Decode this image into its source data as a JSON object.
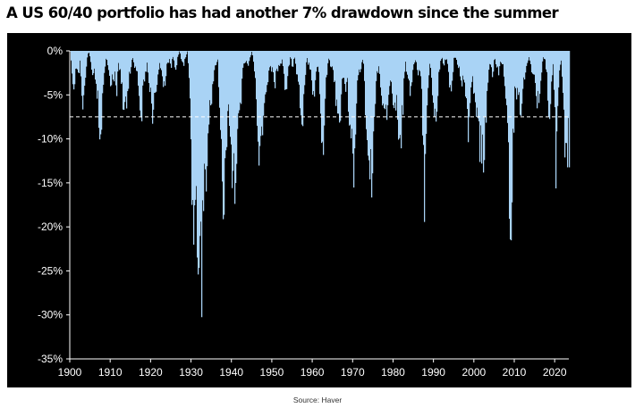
{
  "title": "A US 60/40 portfolio has had another 7% drawdown since the summer",
  "source": "Source: Haver",
  "colors": {
    "background": "#000000",
    "bars": "#a9d3f5",
    "threshold_line": "#ffffff",
    "axis_text": "#ffffff"
  },
  "chart_data": {
    "type": "area",
    "title": "A US 60/40 portfolio has had another 7% drawdown since the summer",
    "xlabel": "",
    "ylabel": "",
    "xlim": [
      1900,
      2023.5
    ],
    "ylim": [
      -35,
      0
    ],
    "x_ticks": [
      1900,
      1910,
      1920,
      1930,
      1940,
      1950,
      1960,
      1970,
      1980,
      1990,
      2000,
      2010,
      2020
    ],
    "x_tick_labels": [
      "1900",
      "1910",
      "1920",
      "1930",
      "1940",
      "1950",
      "1960",
      "1970",
      "1980",
      "1990",
      "2000",
      "2010",
      "2020"
    ],
    "y_ticks": [
      0,
      -5,
      -10,
      -15,
      -20,
      -25,
      -30,
      -35
    ],
    "y_tick_labels": [
      "0%",
      "-5%",
      "-10%",
      "-15%",
      "-20%",
      "-25%",
      "-30%",
      "-35%"
    ],
    "threshold": -7.5,
    "grid": false,
    "series": [
      {
        "name": "",
        "unit": "%",
        "points": [
          [
            1900.0,
            0
          ],
          [
            1900.5,
            -3
          ],
          [
            1901,
            -5
          ],
          [
            1901.5,
            -2
          ],
          [
            1902,
            -4
          ],
          [
            1902.5,
            -1
          ],
          [
            1903,
            -7
          ],
          [
            1903.5,
            -5
          ],
          [
            1904,
            -2
          ],
          [
            1904.5,
            0
          ],
          [
            1905,
            -1
          ],
          [
            1905.5,
            -3
          ],
          [
            1906,
            -2
          ],
          [
            1906.5,
            -5
          ],
          [
            1907,
            -8
          ],
          [
            1907.5,
            -11.8
          ],
          [
            1908,
            -6
          ],
          [
            1908.5,
            -2
          ],
          [
            1909,
            -1
          ],
          [
            1909.5,
            -2
          ],
          [
            1910,
            -5
          ],
          [
            1910.5,
            -4
          ],
          [
            1911,
            -3
          ],
          [
            1911.5,
            -5
          ],
          [
            1912,
            -2
          ],
          [
            1912.5,
            -3
          ],
          [
            1913,
            -7
          ],
          [
            1913.5,
            -8.5
          ],
          [
            1914,
            -6
          ],
          [
            1914.5,
            -4
          ],
          [
            1915,
            -2
          ],
          [
            1915.5,
            -1
          ],
          [
            1916,
            -3
          ],
          [
            1916.5,
            -2
          ],
          [
            1917,
            -8
          ],
          [
            1917.5,
            -9.3
          ],
          [
            1918,
            -6
          ],
          [
            1918.5,
            -3
          ],
          [
            1919,
            -2
          ],
          [
            1919.5,
            -4
          ],
          [
            1920,
            -7
          ],
          [
            1920.5,
            -8.6
          ],
          [
            1921,
            -6
          ],
          [
            1921.5,
            -4
          ],
          [
            1922,
            -2
          ],
          [
            1922.5,
            -3
          ],
          [
            1923,
            -5
          ],
          [
            1923.5,
            -4
          ],
          [
            1924,
            -2
          ],
          [
            1924.5,
            -1
          ],
          [
            1925,
            -2
          ],
          [
            1925.5,
            -1
          ],
          [
            1926,
            -3
          ],
          [
            1926.5,
            -1
          ],
          [
            1927,
            0
          ],
          [
            1927.5,
            -1
          ],
          [
            1928,
            -2
          ],
          [
            1928.5,
            -1
          ],
          [
            1929,
            0
          ],
          [
            1929.5,
            -4
          ],
          [
            1929.8,
            -12
          ],
          [
            1930,
            -15
          ],
          [
            1930.3,
            -26.5
          ],
          [
            1930.6,
            -20
          ],
          [
            1930.9,
            -24
          ],
          [
            1931.2,
            -22
          ],
          [
            1931.5,
            -25
          ],
          [
            1931.8,
            -28
          ],
          [
            1932.1,
            -30
          ],
          [
            1932.4,
            -33
          ],
          [
            1932.7,
            -27
          ],
          [
            1933,
            -20
          ],
          [
            1933.3,
            -15
          ],
          [
            1933.6,
            -18
          ],
          [
            1934,
            -12
          ],
          [
            1934.5,
            -9
          ],
          [
            1935,
            -6
          ],
          [
            1935.5,
            -3
          ],
          [
            1936,
            -2
          ],
          [
            1936.5,
            -1
          ],
          [
            1937,
            -8
          ],
          [
            1937.5,
            -14
          ],
          [
            1938,
            -23.9
          ],
          [
            1938.5,
            -15
          ],
          [
            1939,
            -9
          ],
          [
            1939.5,
            -11
          ],
          [
            1940,
            -17
          ],
          [
            1940.5,
            -18.8
          ],
          [
            1941,
            -14
          ],
          [
            1941.5,
            -11
          ],
          [
            1942,
            -8
          ],
          [
            1942.5,
            -4
          ],
          [
            1943,
            -2
          ],
          [
            1943.5,
            -1
          ],
          [
            1944,
            -2
          ],
          [
            1944.5,
            -1
          ],
          [
            1945,
            0
          ],
          [
            1945.5,
            -2
          ],
          [
            1946,
            -6
          ],
          [
            1946.5,
            -12
          ],
          [
            1947,
            -14.7
          ],
          [
            1947.5,
            -10
          ],
          [
            1948,
            -8
          ],
          [
            1948.5,
            -6
          ],
          [
            1949,
            -4
          ],
          [
            1949.5,
            -2
          ],
          [
            1950,
            -3
          ],
          [
            1950.5,
            -5
          ],
          [
            1951,
            -3
          ],
          [
            1951.5,
            -2
          ],
          [
            1952,
            -2
          ],
          [
            1952.5,
            -1
          ],
          [
            1953,
            -5
          ],
          [
            1953.5,
            -6
          ],
          [
            1954,
            -2
          ],
          [
            1954.5,
            -1
          ],
          [
            1955,
            -2
          ],
          [
            1955.5,
            -1
          ],
          [
            1956,
            -3
          ],
          [
            1956.5,
            -4
          ],
          [
            1957,
            -8
          ],
          [
            1957.5,
            -9
          ],
          [
            1958,
            -4
          ],
          [
            1958.5,
            -1
          ],
          [
            1959,
            -2
          ],
          [
            1959.5,
            -3
          ],
          [
            1960,
            -7
          ],
          [
            1960.5,
            -5
          ],
          [
            1961,
            -2
          ],
          [
            1961.5,
            -3
          ],
          [
            1962,
            -10
          ],
          [
            1962.5,
            -15.8
          ],
          [
            1963,
            -7
          ],
          [
            1963.5,
            -3
          ],
          [
            1964,
            -1
          ],
          [
            1964.5,
            -2
          ],
          [
            1965,
            -3
          ],
          [
            1965.5,
            -4
          ],
          [
            1966,
            -9
          ],
          [
            1966.5,
            -12
          ],
          [
            1967,
            -6
          ],
          [
            1967.5,
            -3
          ],
          [
            1968,
            -5
          ],
          [
            1968.5,
            -4
          ],
          [
            1969,
            -8
          ],
          [
            1969.5,
            -10
          ],
          [
            1970,
            -16.8
          ],
          [
            1970.5,
            -11
          ],
          [
            1971,
            -5
          ],
          [
            1971.5,
            -3
          ],
          [
            1972,
            -2
          ],
          [
            1972.5,
            -1
          ],
          [
            1973,
            -7
          ],
          [
            1973.5,
            -12
          ],
          [
            1974,
            -16
          ],
          [
            1974.5,
            -19
          ],
          [
            1975,
            -11
          ],
          [
            1975.5,
            -6
          ],
          [
            1976,
            -3
          ],
          [
            1976.5,
            -2
          ],
          [
            1977,
            -6
          ],
          [
            1977.5,
            -8
          ],
          [
            1978,
            -9
          ],
          [
            1978.5,
            -7
          ],
          [
            1979,
            -6
          ],
          [
            1979.5,
            -5
          ],
          [
            1980,
            -11
          ],
          [
            1980.5,
            -7
          ],
          [
            1981,
            -9
          ],
          [
            1981.5,
            -14.2
          ],
          [
            1982,
            -11
          ],
          [
            1982.5,
            -5
          ],
          [
            1983,
            -2
          ],
          [
            1983.5,
            -3
          ],
          [
            1984,
            -6
          ],
          [
            1984.5,
            -4
          ],
          [
            1985,
            -2
          ],
          [
            1985.5,
            -1
          ],
          [
            1986,
            -3
          ],
          [
            1986.5,
            -2
          ],
          [
            1987,
            -5
          ],
          [
            1987.5,
            -16
          ],
          [
            1987.8,
            -23
          ],
          [
            1988,
            -12
          ],
          [
            1988.5,
            -6
          ],
          [
            1989,
            -2
          ],
          [
            1989.5,
            -4
          ],
          [
            1990,
            -8
          ],
          [
            1990.5,
            -10
          ],
          [
            1991,
            -5
          ],
          [
            1991.5,
            -2
          ],
          [
            1992,
            -1
          ],
          [
            1992.5,
            -2
          ],
          [
            1993,
            -1
          ],
          [
            1993.5,
            -2
          ],
          [
            1994,
            -5
          ],
          [
            1994.5,
            -4
          ],
          [
            1995,
            -1
          ],
          [
            1995.5,
            -1
          ],
          [
            1996,
            -2
          ],
          [
            1996.5,
            -3
          ],
          [
            1997,
            -4
          ],
          [
            1997.5,
            -3
          ],
          [
            1998,
            -8
          ],
          [
            1998.5,
            -12
          ],
          [
            1999,
            -5
          ],
          [
            1999.5,
            -3
          ],
          [
            2000,
            -6
          ],
          [
            2000.5,
            -8
          ],
          [
            2001,
            -10
          ],
          [
            2001.5,
            -13
          ],
          [
            2002,
            -15
          ],
          [
            2002.5,
            -12
          ],
          [
            2003,
            -7
          ],
          [
            2003.5,
            -3
          ],
          [
            2004,
            -2
          ],
          [
            2004.5,
            -3
          ],
          [
            2005,
            -1
          ],
          [
            2005.5,
            -2
          ],
          [
            2006,
            -3
          ],
          [
            2006.5,
            -1
          ],
          [
            2007,
            -2
          ],
          [
            2007.5,
            -4
          ],
          [
            2008,
            -8
          ],
          [
            2008.5,
            -18
          ],
          [
            2008.9,
            -24.8
          ],
          [
            2009.2,
            -20
          ],
          [
            2009.6,
            -12
          ],
          [
            2010,
            -5
          ],
          [
            2010.5,
            -8
          ],
          [
            2011,
            -4
          ],
          [
            2011.5,
            -10
          ],
          [
            2012,
            -5
          ],
          [
            2012.5,
            -3
          ],
          [
            2013,
            -2
          ],
          [
            2013.5,
            -1
          ],
          [
            2014,
            -2
          ],
          [
            2014.5,
            -3
          ],
          [
            2015,
            -5
          ],
          [
            2015.5,
            -7
          ],
          [
            2016,
            -6
          ],
          [
            2016.5,
            -3
          ],
          [
            2017,
            -1
          ],
          [
            2017.5,
            -1
          ],
          [
            2018,
            -4
          ],
          [
            2018.5,
            -10
          ],
          [
            2019,
            -5
          ],
          [
            2019.5,
            -2
          ],
          [
            2020,
            -7
          ],
          [
            2020.2,
            -18.2
          ],
          [
            2020.6,
            -8
          ],
          [
            2021,
            -3
          ],
          [
            2021.5,
            -1
          ],
          [
            2022,
            -5
          ],
          [
            2022.4,
            -12
          ],
          [
            2022.8,
            -15.8
          ],
          [
            2023.0,
            -14
          ],
          [
            2023.2,
            -10
          ],
          [
            2023.4,
            -13.5
          ]
        ]
      }
    ]
  }
}
